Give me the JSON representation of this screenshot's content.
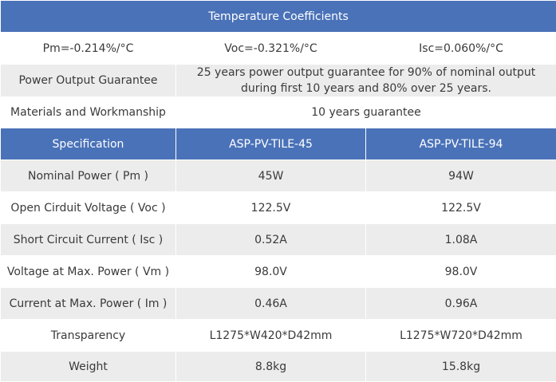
{
  "temperature": {
    "title": "Temperature Coefficients",
    "pm": "Pm=-0.214%/°C",
    "voc": "Voc=-0.321%/°C",
    "isc": "Isc=0.060%/°C"
  },
  "guarantee": {
    "power_label": "Power Output Guarantee",
    "power_value": "25 years power output guarantee for 90% of nominal output during first 10 years and 80% over 25 years.",
    "materials_label": "Materials and Workmanship",
    "materials_value": "10 years guarantee"
  },
  "spec": {
    "headers": [
      "Specification",
      "ASP-PV-TILE-45",
      "ASP-PV-TILE-94"
    ],
    "rows": [
      [
        "Nominal Power ( Pm )",
        "45W",
        "94W"
      ],
      [
        "Open Cirduit Voltage ( Voc )",
        "122.5V",
        "122.5V"
      ],
      [
        "Short Circuit Current ( Isc )",
        "0.52A",
        "1.08A"
      ],
      [
        "Voltage at Max. Power ( Vm )",
        "98.0V",
        "98.0V"
      ],
      [
        "Current at Max. Power ( Im )",
        "0.46A",
        "0.96A"
      ],
      [
        "Transparency",
        "L1275*W420*D42mm",
        "L1275*W720*D42mm"
      ],
      [
        "Weight",
        "8.8kg",
        "15.8kg"
      ]
    ]
  }
}
